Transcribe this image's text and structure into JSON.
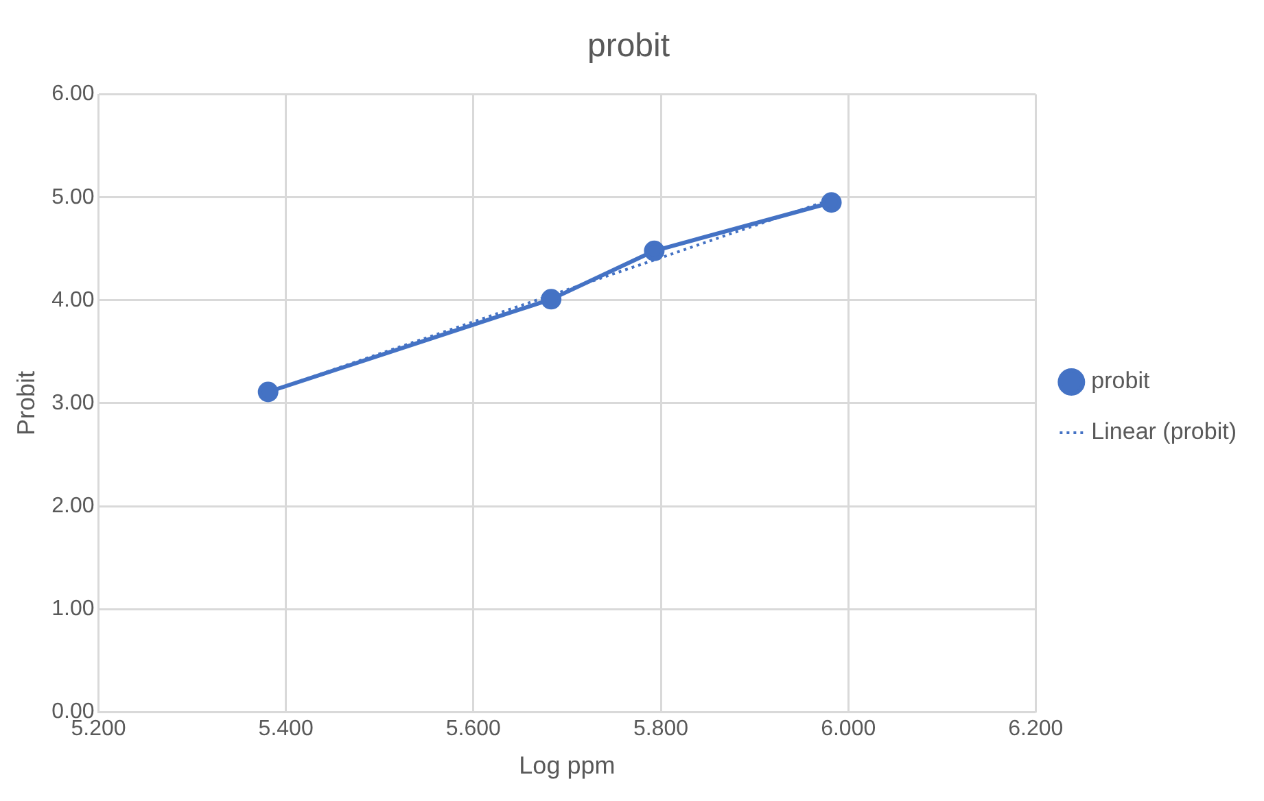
{
  "chart_data": {
    "type": "line",
    "title": "probit",
    "xlabel": "Log ppm",
    "ylabel": "Probit",
    "xlim": [
      5.2,
      6.2
    ],
    "xticks": [
      {
        "value": 5.2,
        "label": "5.200"
      },
      {
        "value": 5.4,
        "label": "5.400"
      },
      {
        "value": 5.6,
        "label": "5.600"
      },
      {
        "value": 5.8,
        "label": "5.800"
      },
      {
        "value": 6.0,
        "label": "6.000"
      },
      {
        "value": 6.2,
        "label": "6.200"
      }
    ],
    "ylim": [
      0,
      6
    ],
    "yticks": [
      {
        "value": 0,
        "label": "0.00"
      },
      {
        "value": 1,
        "label": "1.00"
      },
      {
        "value": 2,
        "label": "2.00"
      },
      {
        "value": 3,
        "label": "3.00"
      },
      {
        "value": 4,
        "label": "4.00"
      },
      {
        "value": 5,
        "label": "5.00"
      },
      {
        "value": 6,
        "label": "6.00"
      }
    ],
    "grid": true,
    "legend": "right",
    "series": [
      {
        "name": "probit",
        "color": "#4472c4",
        "marker": "circle",
        "line_style": "solid",
        "x": [
          5.381,
          5.683,
          5.793,
          5.982
        ],
        "values": [
          3.11,
          4.01,
          4.48,
          4.95
        ]
      },
      {
        "name": "Linear (probit)",
        "color": "#4472c4",
        "marker": "none",
        "line_style": "dotted",
        "x": [
          5.381,
          5.982
        ],
        "values": [
          3.11,
          4.98
        ]
      }
    ]
  }
}
